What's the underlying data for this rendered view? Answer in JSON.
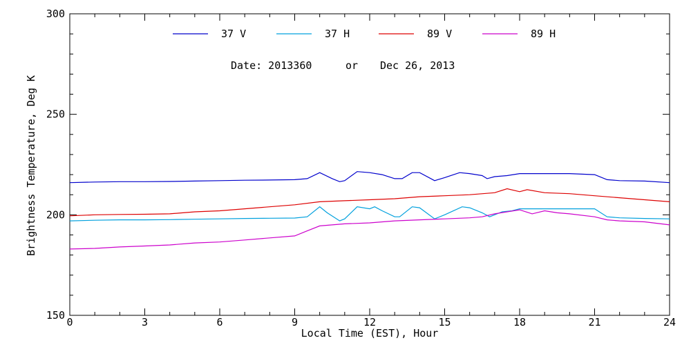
{
  "chart_data": {
    "type": "line",
    "xlabel": "Local Time (EST), Hour",
    "ylabel": "Brightness Temperature, Deg K",
    "xlim": [
      0,
      24
    ],
    "ylim": [
      150,
      300
    ],
    "xticks": [
      0,
      3,
      6,
      9,
      12,
      15,
      18,
      21,
      24
    ],
    "yticks": [
      150,
      200,
      250,
      300
    ],
    "annotation": {
      "date_label": "Date: 2013360",
      "or_label": "or",
      "date_text": "Dec 26, 2013"
    },
    "legend_position": "top",
    "series": [
      {
        "name": "37 V",
        "color": "#0000cc",
        "points": [
          [
            0,
            216
          ],
          [
            1,
            216.3
          ],
          [
            2,
            216.5
          ],
          [
            3,
            216.5
          ],
          [
            4,
            216.6
          ],
          [
            5,
            216.8
          ],
          [
            6,
            217
          ],
          [
            7,
            217.2
          ],
          [
            8,
            217.3
          ],
          [
            9,
            217.5
          ],
          [
            9.5,
            218
          ],
          [
            10,
            221
          ],
          [
            10.5,
            218
          ],
          [
            10.8,
            216.5
          ],
          [
            11,
            217
          ],
          [
            11.5,
            221.5
          ],
          [
            12,
            221
          ],
          [
            12.5,
            220
          ],
          [
            13,
            218
          ],
          [
            13.3,
            218
          ],
          [
            13.7,
            221
          ],
          [
            14,
            221
          ],
          [
            14.6,
            217
          ],
          [
            15,
            218.5
          ],
          [
            15.6,
            221
          ],
          [
            16,
            220.5
          ],
          [
            16.5,
            219.5
          ],
          [
            16.7,
            218
          ],
          [
            17,
            219
          ],
          [
            17.5,
            219.5
          ],
          [
            18,
            220.5
          ],
          [
            19,
            220.5
          ],
          [
            20,
            220.5
          ],
          [
            21,
            220
          ],
          [
            21.5,
            217.5
          ],
          [
            22,
            217
          ],
          [
            23,
            216.8
          ],
          [
            24,
            216
          ]
        ]
      },
      {
        "name": "37 H",
        "color": "#00a0dd",
        "points": [
          [
            0,
            197
          ],
          [
            1,
            197.3
          ],
          [
            2,
            197.5
          ],
          [
            3,
            197.5
          ],
          [
            4,
            197.6
          ],
          [
            5,
            197.8
          ],
          [
            6,
            198
          ],
          [
            7,
            198.2
          ],
          [
            8,
            198.3
          ],
          [
            9,
            198.4
          ],
          [
            9.5,
            199
          ],
          [
            10,
            204
          ],
          [
            10.3,
            201
          ],
          [
            10.8,
            197
          ],
          [
            11,
            198
          ],
          [
            11.5,
            204
          ],
          [
            12,
            203
          ],
          [
            12.2,
            204
          ],
          [
            12.5,
            202
          ],
          [
            13,
            199
          ],
          [
            13.2,
            199
          ],
          [
            13.7,
            204
          ],
          [
            14,
            203.5
          ],
          [
            14.6,
            198
          ],
          [
            15,
            200
          ],
          [
            15.7,
            204
          ],
          [
            16,
            203.5
          ],
          [
            16.5,
            201
          ],
          [
            16.8,
            199
          ],
          [
            17,
            200
          ],
          [
            17.3,
            201.5
          ],
          [
            17.7,
            202
          ],
          [
            18,
            203
          ],
          [
            19,
            203
          ],
          [
            20,
            203
          ],
          [
            21,
            203
          ],
          [
            21.5,
            199
          ],
          [
            22,
            198.5
          ],
          [
            23,
            198.2
          ],
          [
            24,
            198
          ]
        ]
      },
      {
        "name": "89 V",
        "color": "#dd0000",
        "points": [
          [
            0,
            199.5
          ],
          [
            1,
            200
          ],
          [
            2,
            200.2
          ],
          [
            3,
            200.3
          ],
          [
            4,
            200.5
          ],
          [
            5,
            201.5
          ],
          [
            6,
            202
          ],
          [
            7,
            203
          ],
          [
            8,
            204
          ],
          [
            9,
            205
          ],
          [
            10,
            206.5
          ],
          [
            11,
            207
          ],
          [
            12,
            207.5
          ],
          [
            13,
            208
          ],
          [
            14,
            209
          ],
          [
            15,
            209.5
          ],
          [
            16,
            210
          ],
          [
            17,
            211
          ],
          [
            17.5,
            213
          ],
          [
            18,
            211.5
          ],
          [
            18.3,
            212.5
          ],
          [
            19,
            211
          ],
          [
            20,
            210.5
          ],
          [
            21,
            209.5
          ],
          [
            22,
            208.5
          ],
          [
            23,
            207.5
          ],
          [
            24,
            206.5
          ]
        ]
      },
      {
        "name": "89 H",
        "color": "#cc00cc",
        "points": [
          [
            0,
            183
          ],
          [
            1,
            183.3
          ],
          [
            2,
            184
          ],
          [
            3,
            184.5
          ],
          [
            4,
            185
          ],
          [
            5,
            186
          ],
          [
            6,
            186.5
          ],
          [
            7,
            187.5
          ],
          [
            8,
            188.5
          ],
          [
            9,
            189.5
          ],
          [
            9.5,
            192
          ],
          [
            10,
            194.5
          ],
          [
            11,
            195.5
          ],
          [
            12,
            196
          ],
          [
            13,
            197
          ],
          [
            14,
            197.5
          ],
          [
            15,
            198
          ],
          [
            16,
            198.5
          ],
          [
            16.5,
            199
          ],
          [
            17,
            200.5
          ],
          [
            17.5,
            201.5
          ],
          [
            18,
            202.5
          ],
          [
            18.5,
            200.5
          ],
          [
            19,
            202
          ],
          [
            19.5,
            201
          ],
          [
            20,
            200.5
          ],
          [
            21,
            199
          ],
          [
            21.5,
            197.5
          ],
          [
            22,
            197
          ],
          [
            23,
            196.5
          ],
          [
            24,
            195
          ]
        ]
      }
    ]
  }
}
